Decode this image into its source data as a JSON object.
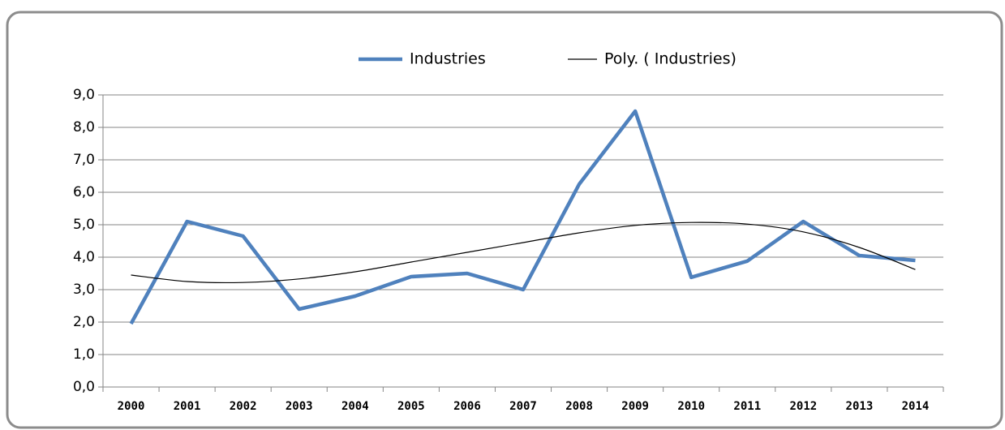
{
  "chart_data": {
    "type": "line",
    "categories": [
      "2000",
      "2001",
      "2002",
      "2003",
      "2004",
      "2005",
      "2006",
      "2007",
      "2008",
      "2009",
      "2010",
      "2011",
      "2012",
      "2013",
      "2014"
    ],
    "series": [
      {
        "name": "Industries",
        "color": "#4f81bd",
        "values": [
          1.95,
          5.1,
          4.65,
          2.4,
          2.8,
          3.4,
          3.5,
          3.0,
          6.25,
          8.5,
          3.38,
          3.88,
          5.1,
          4.05,
          3.9
        ]
      },
      {
        "name": "Poly. ( Industries)",
        "color": "#000000",
        "values": [
          3.45,
          3.25,
          3.22,
          3.33,
          3.55,
          3.85,
          4.15,
          4.45,
          4.75,
          4.98,
          5.07,
          5.02,
          4.78,
          4.3,
          3.62
        ]
      }
    ],
    "ylim": [
      0,
      9
    ],
    "yticks": [
      {
        "value": 0,
        "label": "0,0"
      },
      {
        "value": 1,
        "label": "1,0"
      },
      {
        "value": 2,
        "label": "2,0"
      },
      {
        "value": 3,
        "label": "3,0"
      },
      {
        "value": 4,
        "label": "4,0"
      },
      {
        "value": 5,
        "label": "5,0"
      },
      {
        "value": 6,
        "label": "6,0"
      },
      {
        "value": 7,
        "label": "7,0"
      },
      {
        "value": 8,
        "label": "8,0"
      },
      {
        "value": 9,
        "label": "9,0"
      }
    ],
    "grid": true,
    "legend": "top"
  }
}
